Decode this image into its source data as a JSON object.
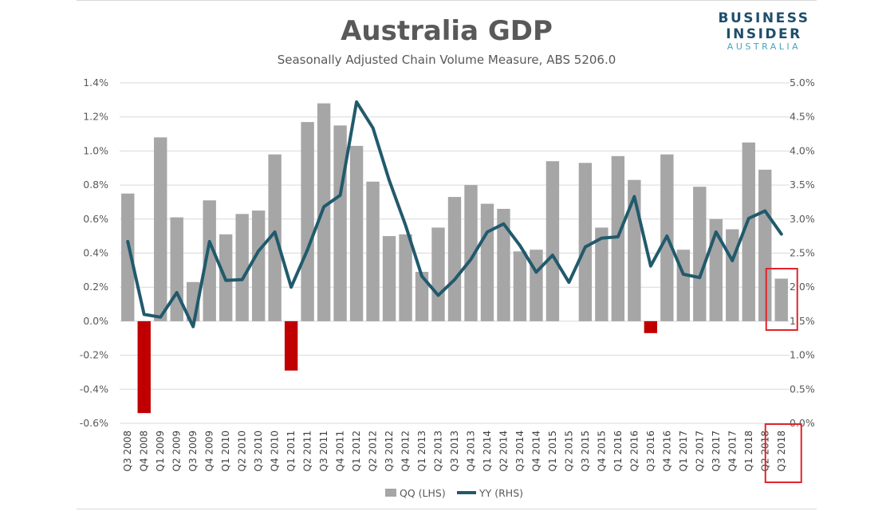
{
  "brand": {
    "line1": "BUSINESS",
    "line2": "INSIDER",
    "line3": "AUSTRALIA"
  },
  "chart_data": {
    "type": "bar",
    "title": "Australia GDP",
    "subtitle": "Seasonally Adjusted Chain Volume Measure, ABS 5206.0",
    "categories": [
      "Q3 2008",
      "Q4 2008",
      "Q1 2009",
      "Q2 2009",
      "Q3 2009",
      "Q4 2009",
      "Q1 2010",
      "Q2 2010",
      "Q3 2010",
      "Q4 2010",
      "Q1 2011",
      "Q2 2011",
      "Q3 2011",
      "Q4 2011",
      "Q1 2012",
      "Q2 2012",
      "Q3 2012",
      "Q4 2012",
      "Q1 2013",
      "Q2 2013",
      "Q3 2013",
      "Q4 2013",
      "Q1 2014",
      "Q2 2014",
      "Q3 2014",
      "Q4 2014",
      "Q1 2015",
      "Q2 2015",
      "Q3 2015",
      "Q4 2015",
      "Q1 2016",
      "Q2 2016",
      "Q3 2016",
      "Q4 2016",
      "Q1 2017",
      "Q2 2017",
      "Q3 2017",
      "Q4 2017",
      "Q1 2018",
      "Q2 2018",
      "Q3 2018"
    ],
    "series": [
      {
        "name": "QQ (LHS)",
        "type": "bar",
        "axis": "left",
        "color": "#a6a6a6",
        "negative_color": "#c00000",
        "values": [
          0.75,
          -0.54,
          1.08,
          0.61,
          0.23,
          0.71,
          0.51,
          0.63,
          0.65,
          0.98,
          -0.29,
          1.17,
          1.28,
          1.15,
          1.03,
          0.82,
          0.5,
          0.51,
          0.29,
          0.55,
          0.73,
          0.8,
          0.69,
          0.66,
          0.41,
          0.42,
          0.94,
          0.0,
          0.93,
          0.55,
          0.97,
          0.83,
          -0.07,
          0.98,
          0.42,
          0.79,
          0.6,
          0.54,
          1.05,
          0.89,
          0.25
        ]
      },
      {
        "name": "YY (RHS)",
        "type": "line",
        "axis": "right",
        "color": "#215a6c",
        "values": [
          2.67,
          1.6,
          1.56,
          1.92,
          1.42,
          2.67,
          2.1,
          2.11,
          2.53,
          2.81,
          2.0,
          2.55,
          3.18,
          3.35,
          4.72,
          4.34,
          3.57,
          2.91,
          2.16,
          1.88,
          2.11,
          2.41,
          2.81,
          2.93,
          2.61,
          2.22,
          2.47,
          2.07,
          2.59,
          2.72,
          2.74,
          3.33,
          2.31,
          2.75,
          2.19,
          2.14,
          2.81,
          2.39,
          3.01,
          3.12,
          2.78
        ]
      }
    ],
    "y_left": {
      "min": -0.6,
      "max": 1.4,
      "step": 0.2,
      "ticks": [
        "-0.6%",
        "-0.4%",
        "-0.2%",
        "0.0%",
        "0.2%",
        "0.4%",
        "0.6%",
        "0.8%",
        "1.0%",
        "1.2%",
        "1.4%"
      ]
    },
    "y_right": {
      "min": 0.0,
      "max": 5.0,
      "step": 0.5,
      "ticks": [
        "0.0%",
        "0.5%",
        "1.0%",
        "1.5%",
        "2.0%",
        "2.5%",
        "3.0%",
        "3.5%",
        "4.0%",
        "4.5%",
        "5.0%"
      ]
    },
    "grid": true,
    "legend_position": "bottom-center",
    "highlight": {
      "category": "Q3 2018",
      "color": "#e0242b"
    }
  }
}
